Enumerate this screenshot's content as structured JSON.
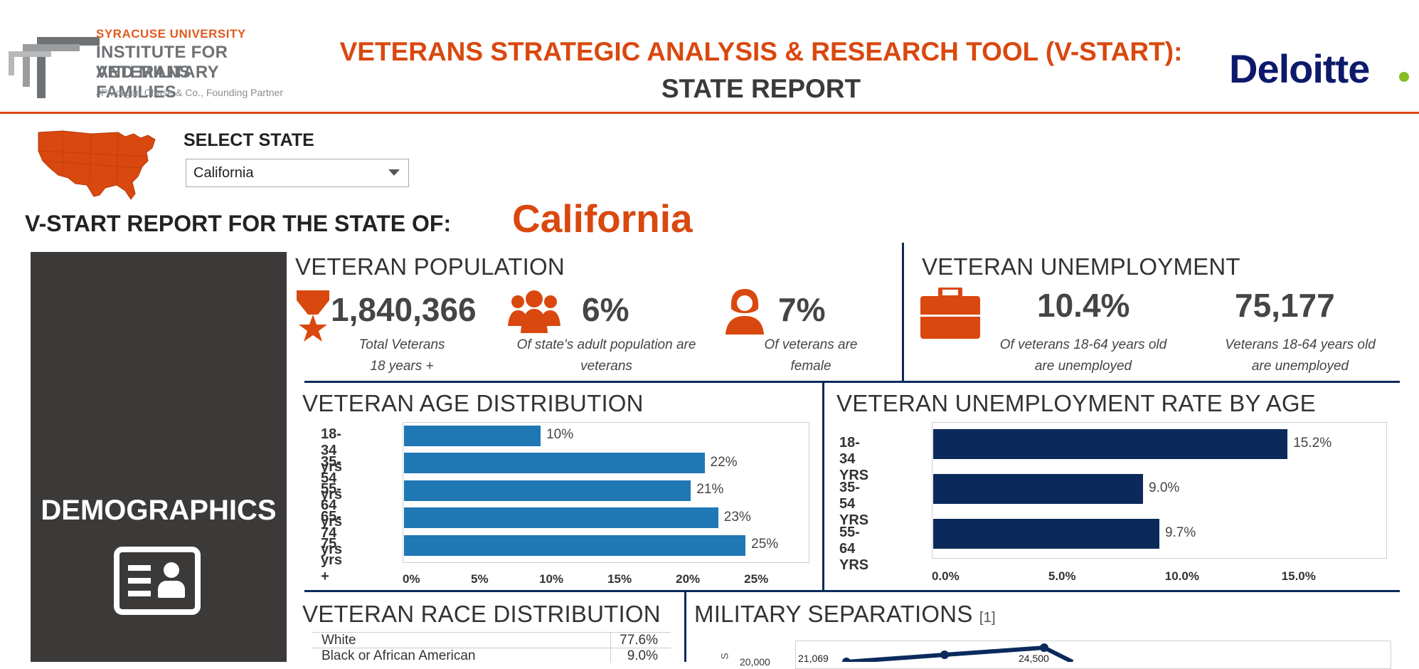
{
  "header": {
    "logo": {
      "line1": "SYRACUSE UNIVERSITY",
      "line2": "INSTITUTE FOR VETERANS",
      "line3": "AND MILITARY FAMILIES",
      "line4": "JPMorgan Chase & Co., Founding Partner"
    },
    "title_line1": "VETERANS STRATEGIC ANALYSIS & RESEARCH TOOL (V-START):",
    "title_line2": "STATE REPORT",
    "partner_logo": "Deloitte"
  },
  "state_selector": {
    "label": "SELECT STATE",
    "selected": "California"
  },
  "report": {
    "label": "V-START REPORT FOR THE STATE OF:",
    "state": "California"
  },
  "demographics": {
    "title": "DEMOGRAPHICS",
    "icon": "id-card-icon"
  },
  "veteran_population": {
    "title": "VETERAN POPULATION",
    "total": {
      "value": "1,840,366",
      "caption1": "Total Veterans",
      "caption2": "18 years  +"
    },
    "share": {
      "value": "6%",
      "caption1": "Of state's adult population are",
      "caption2": "veterans"
    },
    "female": {
      "value": "7%",
      "caption1": "Of veterans are",
      "caption2": "female"
    }
  },
  "veteran_unemployment": {
    "title": "VETERAN UNEMPLOYMENT",
    "rate": {
      "value": "10.4%",
      "caption1": "Of veterans 18-64 years old",
      "caption2": "are unemployed"
    },
    "count": {
      "value": "75,177",
      "caption1": "Veterans 18-64 years old",
      "caption2": "are unemployed"
    }
  },
  "age_distribution": {
    "title": "VETERAN AGE DISTRIBUTION"
  },
  "unemployment_by_age": {
    "title": "VETERAN UNEMPLOYMENT RATE BY AGE"
  },
  "race_distribution": {
    "title": "VETERAN RACE DISTRIBUTION",
    "rows": [
      {
        "label": "White",
        "value": "77.6%"
      },
      {
        "label": "Black or African American",
        "value": "9.0%"
      }
    ]
  },
  "military_separations": {
    "title": "MILITARY SEPARATIONS",
    "footnote": "[1]",
    "ytick": "20,000",
    "yaxis_label": "S",
    "labels": [
      "21,069",
      "24,500"
    ]
  },
  "colors": {
    "accent": "#d9480f",
    "navy": "#0b2a5b",
    "bar_blue": "#1f77b4",
    "panel_dark": "#3b3a38"
  },
  "chart_data": [
    {
      "type": "bar",
      "orientation": "horizontal",
      "title": "VETERAN AGE DISTRIBUTION",
      "categories": [
        "18-34 yrs",
        "35-54 yrs",
        "55-64 yrs",
        "65-74 yrs",
        "75 yrs +"
      ],
      "values": [
        10,
        22,
        21,
        23,
        25
      ],
      "value_labels": [
        "10%",
        "22%",
        "21%",
        "23%",
        "25%"
      ],
      "xlim": [
        0,
        29
      ],
      "xticks": [
        "0%",
        "5%",
        "10%",
        "15%",
        "20%",
        "25%"
      ]
    },
    {
      "type": "bar",
      "orientation": "horizontal",
      "title": "VETERAN UNEMPLOYMENT RATE BY AGE",
      "categories": [
        "18-34 YRS",
        "35-54 YRS",
        "55-64 YRS"
      ],
      "values": [
        15.2,
        9.0,
        9.7
      ],
      "value_labels": [
        "15.2%",
        "9.0%",
        "9.7%"
      ],
      "xlim": [
        0,
        18
      ],
      "xticks": [
        "0.0%",
        "5.0%",
        "10.0%",
        "15.0%"
      ]
    }
  ]
}
